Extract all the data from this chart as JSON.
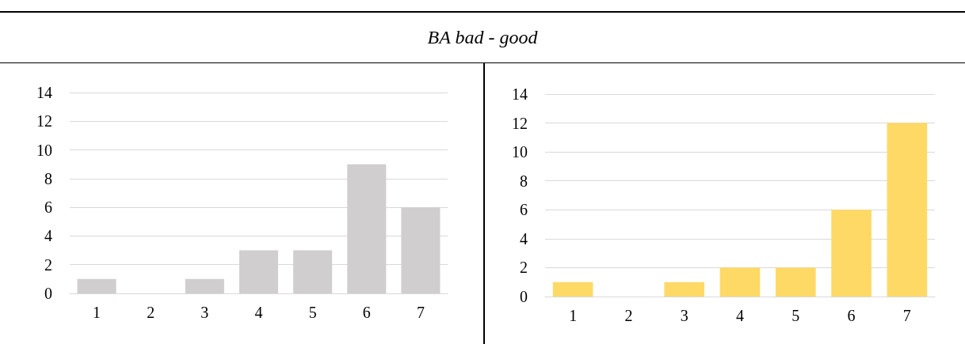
{
  "chart_data": [
    {
      "type": "bar",
      "title": "BA bad - good",
      "categories": [
        "1",
        "2",
        "3",
        "4",
        "5",
        "6",
        "7"
      ],
      "values": [
        1,
        0,
        1,
        3,
        3,
        9,
        6
      ],
      "color": "#d0cece",
      "ylim": [
        0,
        14
      ],
      "yticks": [
        0,
        2,
        4,
        6,
        8,
        10,
        12,
        14
      ],
      "grid": "y"
    },
    {
      "type": "bar",
      "categories": [
        "1",
        "2",
        "3",
        "4",
        "5",
        "6",
        "7"
      ],
      "values": [
        1,
        0,
        1,
        2,
        2,
        6,
        12
      ],
      "color": "#ffd966",
      "ylim": [
        0,
        14
      ],
      "yticks": [
        0,
        2,
        4,
        6,
        8,
        10,
        12,
        14
      ],
      "grid": "y"
    }
  ]
}
